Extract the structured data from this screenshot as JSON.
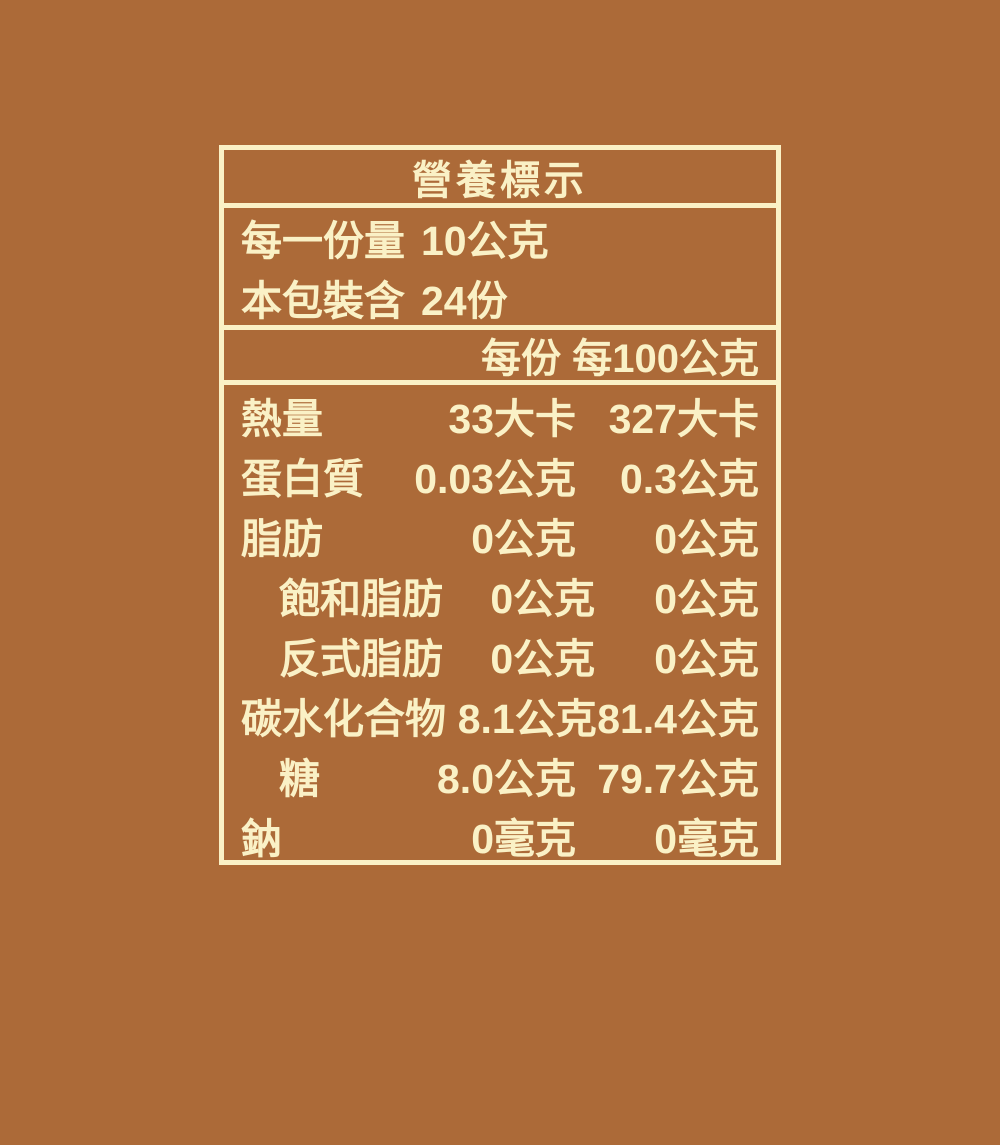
{
  "colors": {
    "background": "#AC6A38",
    "foreground": "#FAF1C6"
  },
  "label": {
    "title": "營養標示",
    "serving_info": [
      {
        "label": "每一份量",
        "value": "10公克"
      },
      {
        "label": "本包裝含",
        "value": "24份"
      }
    ],
    "column_header": "每份 每100公克",
    "rows": [
      {
        "name": "熱量",
        "indent": false,
        "per_serving": "33大卡",
        "per_100g": "327大卡"
      },
      {
        "name": "蛋白質",
        "indent": false,
        "per_serving": "0.03公克",
        "per_100g": "0.3公克"
      },
      {
        "name": "脂肪",
        "indent": false,
        "per_serving": "0公克",
        "per_100g": "0公克"
      },
      {
        "name": "飽和脂肪",
        "indent": true,
        "per_serving": "0公克",
        "per_100g": "0公克"
      },
      {
        "name": "反式脂肪",
        "indent": true,
        "per_serving": "0公克",
        "per_100g": "0公克"
      },
      {
        "name": "碳水化合物",
        "indent": false,
        "per_serving": "8.1公克",
        "per_100g": "81.4公克"
      },
      {
        "name": "糖",
        "indent": true,
        "per_serving": "8.0公克",
        "per_100g": "79.7公克"
      },
      {
        "name": "鈉",
        "indent": false,
        "per_serving": "0毫克",
        "per_100g": "0毫克"
      }
    ]
  }
}
